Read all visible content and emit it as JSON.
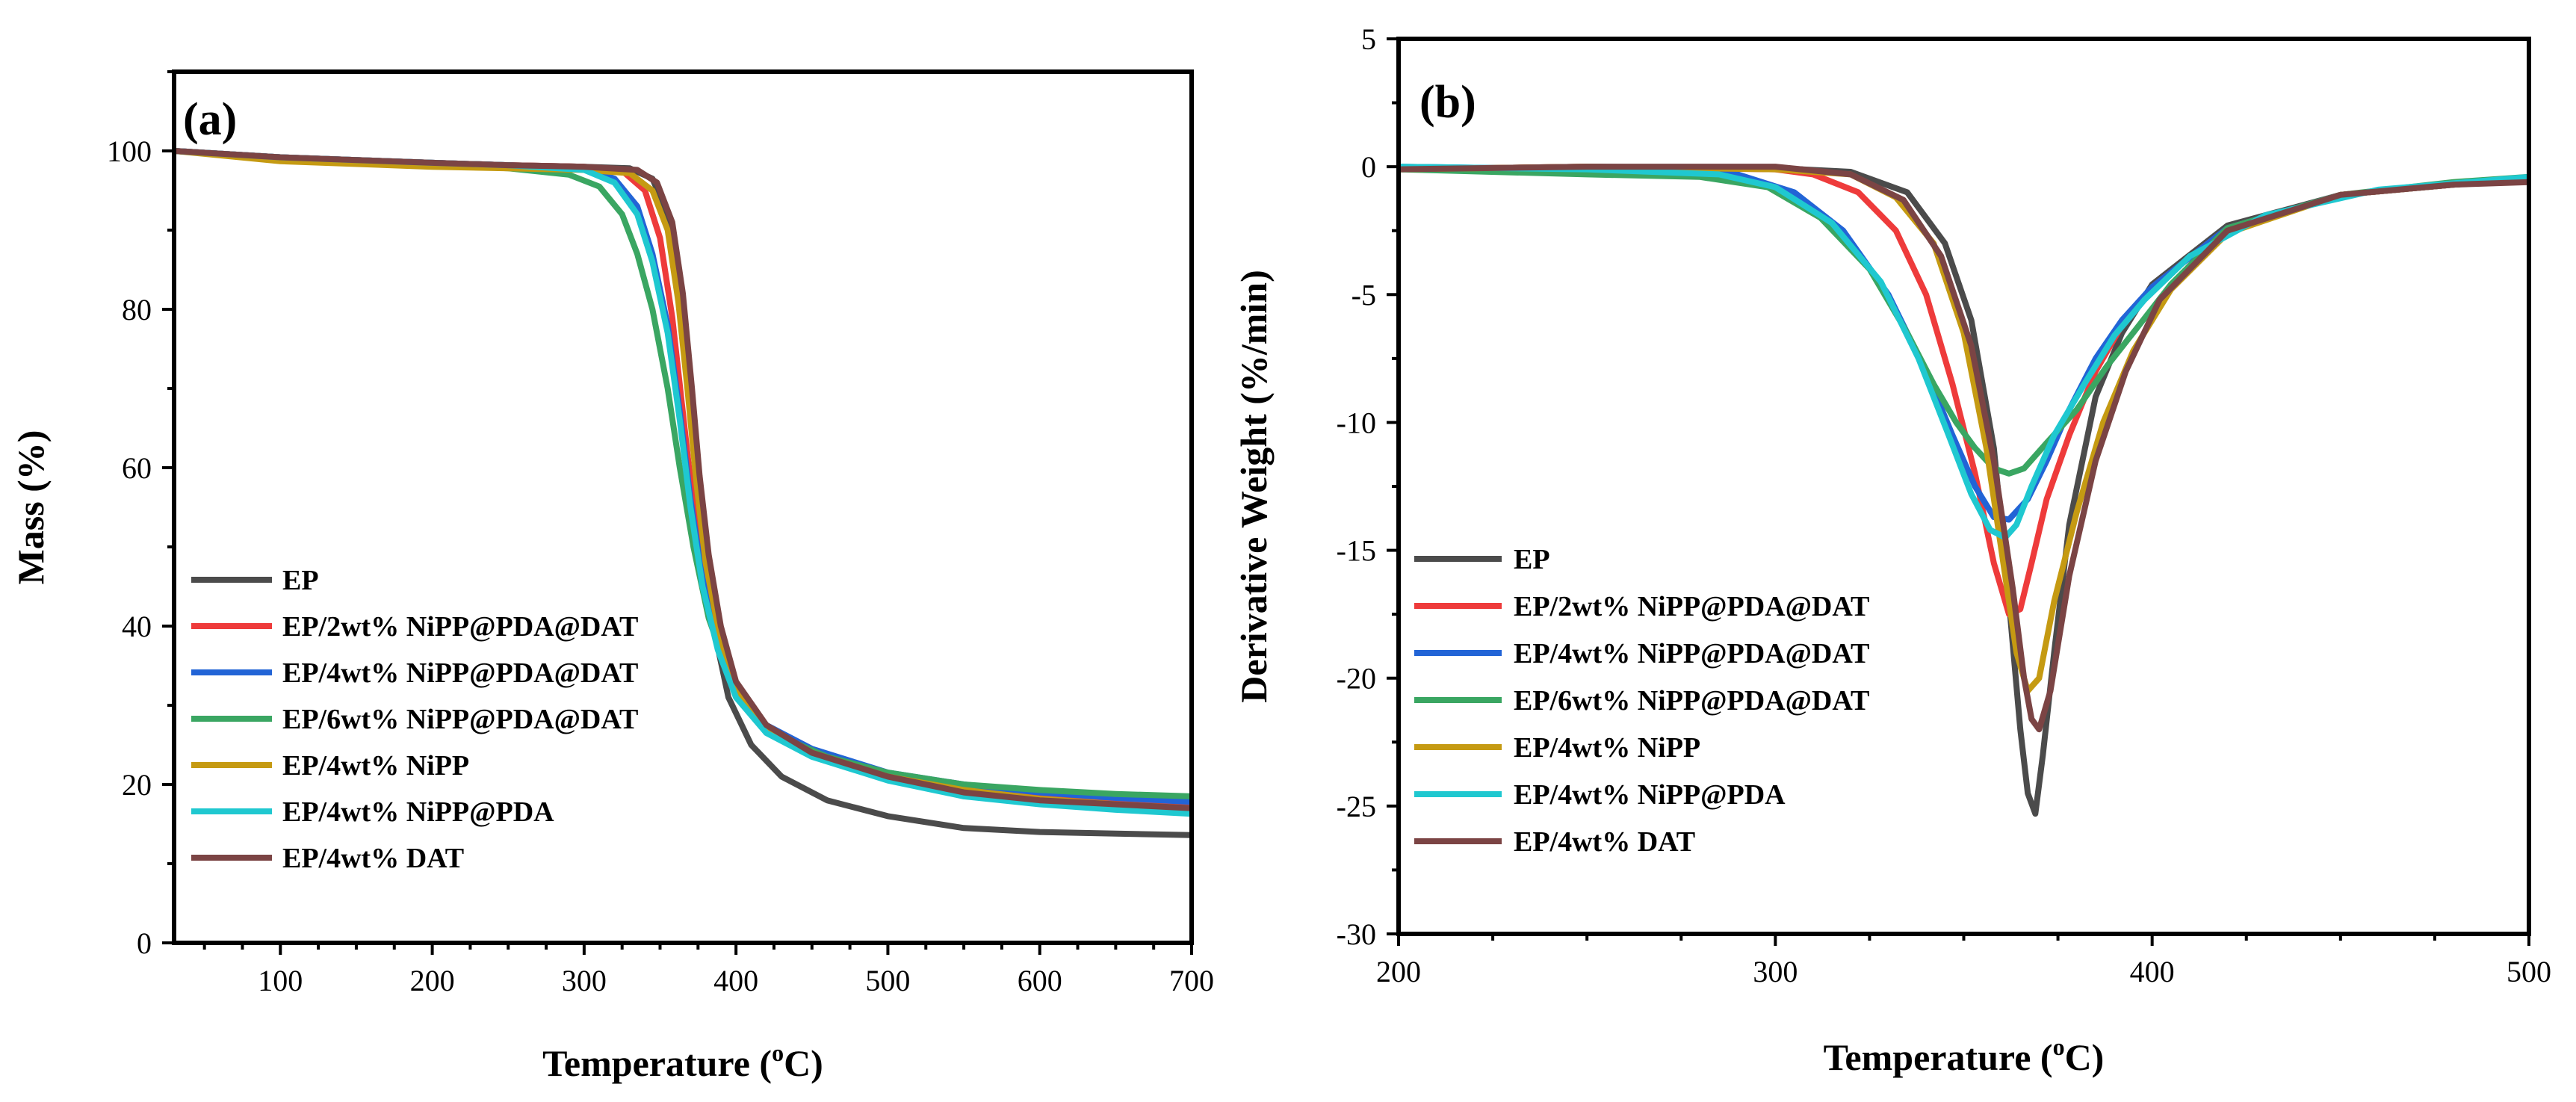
{
  "figure": {
    "panels": [
      "(a)",
      "(b)"
    ]
  },
  "chart_data": [
    {
      "type": "line",
      "panel_label": "(a)",
      "title": "",
      "xlabel": "Temperature (",
      "xlabel_sup": "o",
      "xlabel_unit": "C)",
      "ylabel": "Mass (%)",
      "xlim": [
        30,
        700
      ],
      "ylim": [
        0,
        110
      ],
      "xticks": [
        100,
        200,
        300,
        400,
        500,
        600,
        700
      ],
      "yticks": [
        0,
        20,
        40,
        60,
        80,
        100
      ],
      "legend_position": "bottom-left",
      "series": [
        {
          "name": "EP",
          "color": "#4b4b4b",
          "x": [
            30,
            100,
            200,
            250,
            300,
            330,
            345,
            355,
            362,
            368,
            373,
            378,
            385,
            395,
            410,
            430,
            460,
            500,
            550,
            600,
            650,
            700
          ],
          "y": [
            100,
            99.2,
            98.5,
            98.2,
            98,
            97.8,
            96.5,
            92,
            84,
            72,
            60,
            50,
            40,
            31,
            25,
            21,
            18,
            16,
            14.5,
            14,
            13.8,
            13.6
          ]
        },
        {
          "name": "EP/2wt% NiPP@PDA@DAT",
          "color": "#ee3b3b",
          "x": [
            30,
            100,
            200,
            250,
            300,
            325,
            340,
            350,
            358,
            365,
            372,
            380,
            390,
            400,
            420,
            450,
            500,
            550,
            600,
            650,
            700
          ],
          "y": [
            100,
            99.2,
            98.5,
            98.2,
            98,
            97.5,
            95,
            89,
            79,
            67,
            55,
            45,
            37,
            32,
            27,
            24,
            21,
            19.5,
            18.5,
            18,
            17.5
          ]
        },
        {
          "name": "EP/4wt% NiPP@PDA@DAT",
          "color": "#2264d6",
          "x": [
            30,
            100,
            200,
            250,
            300,
            320,
            335,
            345,
            355,
            363,
            370,
            378,
            388,
            400,
            420,
            450,
            500,
            550,
            600,
            650,
            700
          ],
          "y": [
            100,
            99.2,
            98.5,
            98.2,
            97.8,
            96.5,
            93,
            87,
            78,
            67,
            56,
            46,
            38,
            32,
            27.5,
            24.5,
            21.5,
            20,
            19,
            18.3,
            17.8
          ]
        },
        {
          "name": "EP/6wt% NiPP@PDA@DAT",
          "color": "#3aa662",
          "x": [
            30,
            100,
            200,
            250,
            290,
            310,
            325,
            335,
            345,
            355,
            363,
            372,
            382,
            395,
            410,
            430,
            460,
            500,
            550,
            600,
            650,
            700
          ],
          "y": [
            100,
            99,
            98.2,
            97.8,
            97,
            95.5,
            92,
            87,
            80,
            70,
            60,
            50,
            41,
            34,
            29,
            26,
            23.5,
            21.5,
            20,
            19.3,
            18.8,
            18.5
          ]
        },
        {
          "name": "EP/4wt% NiPP",
          "color": "#c59a12",
          "x": [
            30,
            100,
            200,
            250,
            300,
            330,
            345,
            355,
            362,
            368,
            374,
            380,
            390,
            400,
            420,
            450,
            500,
            550,
            600,
            650,
            700
          ],
          "y": [
            100,
            98.7,
            98,
            97.8,
            97.6,
            97.2,
            95,
            90,
            81,
            70,
            58,
            48,
            38,
            32,
            27,
            24,
            21,
            19.3,
            18.2,
            17.5,
            17
          ]
        },
        {
          "name": "EP/4wt% NiPP@PDA",
          "color": "#1fc8d0",
          "x": [
            30,
            100,
            200,
            250,
            300,
            320,
            335,
            345,
            355,
            363,
            370,
            378,
            388,
            400,
            420,
            450,
            500,
            550,
            600,
            650,
            700
          ],
          "y": [
            100,
            99.2,
            98.5,
            98.2,
            97.6,
            96,
            92,
            86,
            77,
            66,
            55,
            45,
            37,
            31,
            26.5,
            23.5,
            20.5,
            18.5,
            17.5,
            16.8,
            16.3
          ]
        },
        {
          "name": "EP/4wt% DAT",
          "color": "#7b4444",
          "x": [
            30,
            100,
            200,
            250,
            300,
            335,
            348,
            358,
            365,
            371,
            376,
            382,
            390,
            400,
            420,
            450,
            500,
            550,
            600,
            650,
            700
          ],
          "y": [
            100,
            99.2,
            98.5,
            98.2,
            98,
            97.6,
            96,
            91,
            82,
            70,
            59,
            49,
            40,
            33,
            27.5,
            24,
            21,
            19,
            18,
            17.5,
            17
          ]
        }
      ]
    },
    {
      "type": "line",
      "panel_label": "(b)",
      "title": "",
      "xlabel": "Temperature (",
      "xlabel_sup": "o",
      "xlabel_unit": "C)",
      "ylabel": "Derivative Weight (%/min)",
      "xlim": [
        200,
        500
      ],
      "ylim": [
        -30,
        5
      ],
      "xticks": [
        200,
        300,
        400,
        500
      ],
      "yticks": [
        -30,
        -25,
        -20,
        -15,
        -10,
        -5,
        0,
        5
      ],
      "legend_position": "bottom-left",
      "series": [
        {
          "name": "EP",
          "color": "#4b4b4b",
          "x": [
            200,
            250,
            300,
            320,
            335,
            345,
            352,
            358,
            362,
            365,
            367,
            369,
            371,
            374,
            378,
            385,
            392,
            400,
            420,
            450,
            480,
            500
          ],
          "y": [
            -0.1,
            0,
            -0.05,
            -0.2,
            -1,
            -3,
            -6,
            -11,
            -17,
            -22,
            -24.5,
            -25.3,
            -23,
            -19,
            -14,
            -9,
            -6.5,
            -4.6,
            -2.3,
            -1.1,
            -0.7,
            -0.5
          ]
        },
        {
          "name": "EP/2wt% NiPP@PDA@DAT",
          "color": "#ee3b3b",
          "x": [
            200,
            250,
            300,
            310,
            322,
            332,
            340,
            347,
            353,
            358,
            362,
            365,
            368,
            372,
            378,
            385,
            392,
            400,
            420,
            450,
            480,
            500
          ],
          "y": [
            -0.1,
            0,
            -0.1,
            -0.3,
            -1,
            -2.5,
            -5,
            -8.5,
            -12,
            -15.5,
            -17.5,
            -17.3,
            -15.5,
            -13,
            -10.5,
            -8,
            -6.2,
            -4.7,
            -2.4,
            -1.1,
            -0.7,
            -0.5
          ]
        },
        {
          "name": "EP/4wt% NiPP@PDA@DAT",
          "color": "#2264d6",
          "x": [
            200,
            250,
            290,
            305,
            318,
            330,
            340,
            347,
            353,
            358,
            362,
            367,
            372,
            378,
            385,
            392,
            400,
            420,
            450,
            480,
            500
          ],
          "y": [
            0,
            -0.1,
            -0.3,
            -1,
            -2.5,
            -5,
            -8,
            -10.5,
            -12.5,
            -13.7,
            -13.8,
            -13,
            -11.5,
            -9.5,
            -7.5,
            -6,
            -4.7,
            -2.4,
            -1.1,
            -0.7,
            -0.5
          ]
        },
        {
          "name": "EP/6wt% NiPP@PDA@DAT",
          "color": "#3aa662",
          "x": [
            200,
            250,
            280,
            298,
            312,
            325,
            335,
            342,
            348,
            353,
            358,
            362,
            366,
            372,
            380,
            388,
            396,
            405,
            420,
            450,
            480,
            500
          ],
          "y": [
            -0.1,
            -0.3,
            -0.4,
            -0.8,
            -2,
            -4,
            -6.5,
            -8.5,
            -10,
            -11,
            -11.8,
            -12,
            -11.8,
            -10.8,
            -9.5,
            -7.8,
            -6.3,
            -4.6,
            -2.4,
            -1.1,
            -0.6,
            -0.4
          ]
        },
        {
          "name": "EP/4wt% NiPP",
          "color": "#c59a12",
          "x": [
            200,
            250,
            300,
            320,
            332,
            342,
            350,
            356,
            361,
            364,
            367,
            370,
            374,
            380,
            387,
            395,
            405,
            420,
            450,
            480,
            500
          ],
          "y": [
            -0.1,
            0,
            -0.1,
            -0.3,
            -1.2,
            -3,
            -6.5,
            -11,
            -16,
            -19,
            -20.5,
            -20,
            -17,
            -13.5,
            -10,
            -7.2,
            -4.8,
            -2.6,
            -1.1,
            -0.7,
            -0.5
          ]
        },
        {
          "name": "EP/4wt% NiPP@PDA",
          "color": "#1fc8d0",
          "x": [
            200,
            250,
            285,
            300,
            315,
            328,
            338,
            346,
            352,
            357,
            361,
            364,
            368,
            374,
            382,
            390,
            398,
            410,
            430,
            460,
            500
          ],
          "y": [
            0,
            -0.1,
            -0.3,
            -0.8,
            -2.2,
            -4.5,
            -7.5,
            -10.5,
            -12.8,
            -14.2,
            -14.5,
            -14,
            -12.5,
            -10.5,
            -8.5,
            -6.6,
            -5.2,
            -3.5,
            -1.9,
            -0.9,
            -0.4
          ]
        },
        {
          "name": "EP/4wt% DAT",
          "color": "#7b4444",
          "x": [
            200,
            250,
            300,
            320,
            334,
            344,
            352,
            358,
            363,
            366,
            368,
            370,
            373,
            378,
            385,
            393,
            402,
            420,
            450,
            480,
            500
          ],
          "y": [
            -0.1,
            0,
            0,
            -0.3,
            -1.3,
            -3.5,
            -7,
            -11.5,
            -16.5,
            -20,
            -21.6,
            -22,
            -20.5,
            -16,
            -11.5,
            -8,
            -5.2,
            -2.5,
            -1.1,
            -0.7,
            -0.6
          ]
        }
      ]
    }
  ]
}
